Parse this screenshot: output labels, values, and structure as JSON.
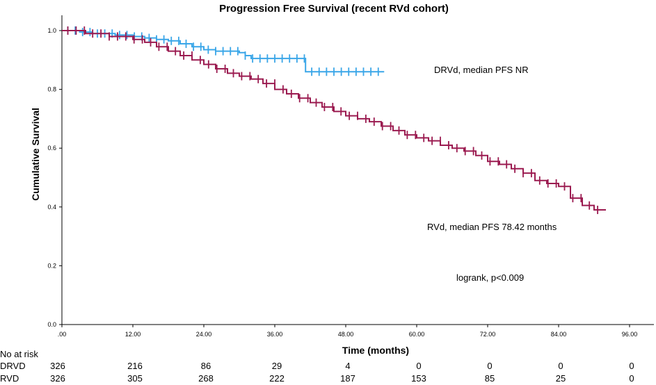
{
  "chart_data": {
    "type": "line",
    "title": "Progression Free Survival (recent RVd cohort)",
    "xlabel": "Time (months)",
    "ylabel": "Cumulative Survival",
    "xlim": [
      0,
      96
    ],
    "ylim": [
      0,
      1.0
    ],
    "x_ticks": [
      ".00",
      "12.00",
      "24.00",
      "36.00",
      "48.00",
      "60.00",
      "72.00",
      "84.00",
      "96.00"
    ],
    "y_ticks": [
      "0.0",
      "0.2",
      "0.4",
      "0.6",
      "0.8",
      "1.0"
    ],
    "series": [
      {
        "name": "DRVd",
        "color": "#3aa6e8",
        "annotation": "DRVd, median PFS NR",
        "x": [
          0,
          3,
          5,
          9,
          12,
          14,
          16,
          18,
          20,
          22,
          24,
          26,
          28,
          30,
          31,
          32,
          34,
          36,
          38,
          40,
          41,
          41.2,
          45,
          50,
          54.5
        ],
        "y": [
          1.0,
          0.995,
          0.99,
          0.985,
          0.98,
          0.975,
          0.97,
          0.965,
          0.955,
          0.945,
          0.935,
          0.93,
          0.93,
          0.925,
          0.915,
          0.905,
          0.905,
          0.905,
          0.905,
          0.905,
          0.905,
          0.86,
          0.86,
          0.86,
          0.86
        ]
      },
      {
        "name": "RVd",
        "color": "#9b1b50",
        "annotation": "RVd, median PFS 78.42 months",
        "x": [
          0,
          4,
          8,
          12,
          14,
          16,
          18,
          20,
          22,
          24,
          26,
          28,
          30,
          32,
          34,
          36,
          38,
          40,
          42,
          44,
          46,
          48,
          50,
          52,
          54,
          56,
          58,
          60,
          62,
          64,
          66,
          68,
          70,
          72,
          74,
          76,
          78,
          80,
          82,
          84,
          86,
          88,
          90,
          92
        ],
        "y": [
          1.0,
          0.99,
          0.98,
          0.97,
          0.96,
          0.945,
          0.93,
          0.915,
          0.9,
          0.885,
          0.87,
          0.855,
          0.845,
          0.835,
          0.82,
          0.8,
          0.785,
          0.77,
          0.755,
          0.74,
          0.725,
          0.71,
          0.7,
          0.69,
          0.675,
          0.66,
          0.645,
          0.635,
          0.625,
          0.61,
          0.6,
          0.59,
          0.575,
          0.555,
          0.545,
          0.53,
          0.515,
          0.49,
          0.48,
          0.47,
          0.43,
          0.405,
          0.39,
          0.39
        ]
      }
    ],
    "annotations": [
      "logrank, p<0.009"
    ]
  },
  "risk_table": {
    "header": "No at risk",
    "rows": [
      {
        "label": "DRVD",
        "values": [
          "326",
          "216",
          "86",
          "29",
          "4",
          "0",
          "0",
          "0",
          "0"
        ]
      },
      {
        "label": "RVD",
        "values": [
          "326",
          "305",
          "268",
          "222",
          "187",
          "153",
          "85",
          "25",
          "0"
        ]
      }
    ]
  }
}
